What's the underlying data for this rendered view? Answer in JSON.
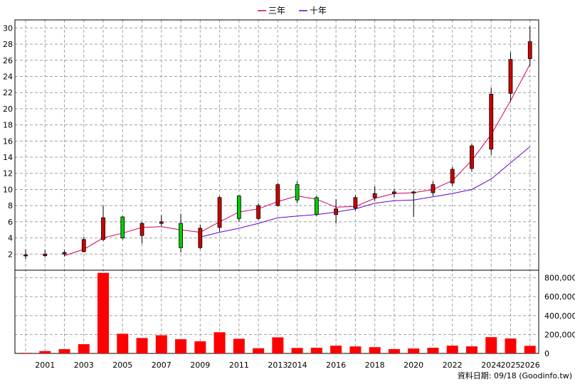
{
  "chart_data": {
    "type": "candlestick",
    "legend": [
      {
        "name": "三年",
        "color": "#cc0066"
      },
      {
        "name": "十年",
        "color": "#6600cc"
      }
    ],
    "price_axis": {
      "ylim": [
        0,
        31
      ],
      "ticks": [
        2,
        4,
        6,
        8,
        10,
        12,
        14,
        16,
        18,
        20,
        22,
        24,
        26,
        28,
        30
      ]
    },
    "volume_axis": {
      "ylim": [
        0,
        880000
      ],
      "ticks": [
        0,
        200000,
        400000,
        600000,
        800000
      ],
      "tick_labels": [
        "0",
        "200,000",
        "400,000",
        "600,000",
        "800,000"
      ]
    },
    "x_axis": {
      "xlim": [
        1999.45,
        2026.45
      ],
      "tick_labels": [
        "2001",
        "2003",
        "2005",
        "2007",
        "2009",
        "2011",
        "2013",
        "2014",
        "2016",
        "2018",
        "2020",
        "2022",
        "2024",
        "2025",
        "2026"
      ]
    },
    "candles": [
      {
        "x": 2000,
        "open": 1.8,
        "high": 2.6,
        "low": 1.4,
        "close": 1.9
      },
      {
        "x": 2001,
        "open": 1.8,
        "high": 2.5,
        "low": 1.6,
        "close": 2.0
      },
      {
        "x": 2002,
        "open": 2.0,
        "high": 2.5,
        "low": 1.7,
        "close": 2.2
      },
      {
        "x": 2003,
        "open": 2.3,
        "high": 4.1,
        "low": 2.2,
        "close": 3.8
      },
      {
        "x": 2004,
        "open": 3.8,
        "high": 8.0,
        "low": 3.6,
        "close": 6.5
      },
      {
        "x": 2005,
        "open": 6.6,
        "high": 6.7,
        "low": 3.8,
        "close": 4.0
      },
      {
        "x": 2006,
        "open": 4.3,
        "high": 6.0,
        "low": 3.3,
        "close": 5.8
      },
      {
        "x": 2007,
        "open": 5.8,
        "high": 6.8,
        "low": 5.5,
        "close": 6.0
      },
      {
        "x": 2008,
        "open": 5.8,
        "high": 7.0,
        "low": 2.2,
        "close": 2.8
      },
      {
        "x": 2009,
        "open": 2.8,
        "high": 5.6,
        "low": 2.6,
        "close": 5.2
      },
      {
        "x": 2010,
        "open": 5.3,
        "high": 9.2,
        "low": 4.8,
        "close": 9.0
      },
      {
        "x": 2011,
        "open": 9.2,
        "high": 9.3,
        "low": 6.0,
        "close": 6.4
      },
      {
        "x": 2012,
        "open": 6.4,
        "high": 8.3,
        "low": 6.2,
        "close": 8.0
      },
      {
        "x": 2013,
        "open": 8.0,
        "high": 10.8,
        "low": 7.9,
        "close": 10.6
      },
      {
        "x": 2014,
        "open": 10.6,
        "high": 11.0,
        "low": 8.3,
        "close": 8.7
      },
      {
        "x": 2015,
        "open": 9.0,
        "high": 9.2,
        "low": 6.7,
        "close": 6.9
      },
      {
        "x": 2016,
        "open": 6.9,
        "high": 8.8,
        "low": 5.8,
        "close": 7.6
      },
      {
        "x": 2017,
        "open": 7.7,
        "high": 9.3,
        "low": 7.4,
        "close": 9.0
      },
      {
        "x": 2018,
        "open": 9.0,
        "high": 10.4,
        "low": 8.6,
        "close": 9.5
      },
      {
        "x": 2019,
        "open": 9.5,
        "high": 10.1,
        "low": 9.0,
        "close": 9.7
      },
      {
        "x": 2020,
        "open": 9.6,
        "high": 9.8,
        "low": 6.6,
        "close": 9.7
      },
      {
        "x": 2021,
        "open": 9.6,
        "high": 11.0,
        "low": 9.2,
        "close": 10.6
      },
      {
        "x": 2022,
        "open": 10.8,
        "high": 12.8,
        "low": 10.4,
        "close": 12.5
      },
      {
        "x": 2023,
        "open": 12.6,
        "high": 15.7,
        "low": 12.2,
        "close": 15.4
      },
      {
        "x": 2024,
        "open": 15.0,
        "high": 22.6,
        "low": 14.3,
        "close": 21.8
      },
      {
        "x": 2025,
        "open": 21.9,
        "high": 27.0,
        "low": 20.9,
        "close": 26.1
      },
      {
        "x": 2026,
        "open": 26.2,
        "high": 30.2,
        "low": 25.3,
        "close": 28.3
      }
    ],
    "series": [
      {
        "name": "三年",
        "x": [
          2002,
          2003,
          2004,
          2005,
          2006,
          2007,
          2008,
          2009,
          2010,
          2011,
          2012,
          2013,
          2014,
          2015,
          2016,
          2017,
          2018,
          2019,
          2020,
          2021,
          2022,
          2023,
          2024,
          2025,
          2026
        ],
        "values": [
          1.8,
          2.6,
          4.0,
          4.6,
          5.3,
          5.4,
          5.0,
          4.7,
          6.0,
          7.2,
          7.6,
          8.5,
          9.2,
          8.8,
          7.8,
          7.9,
          8.9,
          9.5,
          9.6,
          10.0,
          11.1,
          13.6,
          16.8,
          21.0,
          25.5
        ]
      },
      {
        "name": "十年",
        "x": [
          2009,
          2010,
          2011,
          2012,
          2013,
          2014,
          2015,
          2016,
          2017,
          2018,
          2019,
          2020,
          2021,
          2022,
          2023,
          2024,
          2025,
          2026
        ],
        "values": [
          4.1,
          4.7,
          5.2,
          5.8,
          6.5,
          6.7,
          6.9,
          7.2,
          7.6,
          8.3,
          8.6,
          8.7,
          9.1,
          9.5,
          10.0,
          11.3,
          13.3,
          15.3
        ]
      }
    ],
    "volume": [
      {
        "x": 2000,
        "value": 6000
      },
      {
        "x": 2001,
        "value": 25000
      },
      {
        "x": 2002,
        "value": 45000
      },
      {
        "x": 2003,
        "value": 98000
      },
      {
        "x": 2004,
        "value": 852000
      },
      {
        "x": 2005,
        "value": 208000
      },
      {
        "x": 2006,
        "value": 163000
      },
      {
        "x": 2007,
        "value": 192000
      },
      {
        "x": 2008,
        "value": 150000
      },
      {
        "x": 2009,
        "value": 128000
      },
      {
        "x": 2010,
        "value": 224000
      },
      {
        "x": 2011,
        "value": 155000
      },
      {
        "x": 2012,
        "value": 55000
      },
      {
        "x": 2013,
        "value": 170000
      },
      {
        "x": 2014,
        "value": 58000
      },
      {
        "x": 2015,
        "value": 60000
      },
      {
        "x": 2016,
        "value": 82000
      },
      {
        "x": 2017,
        "value": 74000
      },
      {
        "x": 2018,
        "value": 66000
      },
      {
        "x": 2019,
        "value": 46000
      },
      {
        "x": 2020,
        "value": 52000
      },
      {
        "x": 2021,
        "value": 60000
      },
      {
        "x": 2022,
        "value": 82000
      },
      {
        "x": 2023,
        "value": 75000
      },
      {
        "x": 2024,
        "value": 172000
      },
      {
        "x": 2025,
        "value": 158000
      },
      {
        "x": 2026,
        "value": 80000
      }
    ],
    "grid": true,
    "up_color": "#cc0000",
    "down_color": "#00cc00",
    "volume_color": "#ff0000"
  },
  "footer": {
    "text": "資料日期: 09/18  (Goodinfo.tw)"
  }
}
